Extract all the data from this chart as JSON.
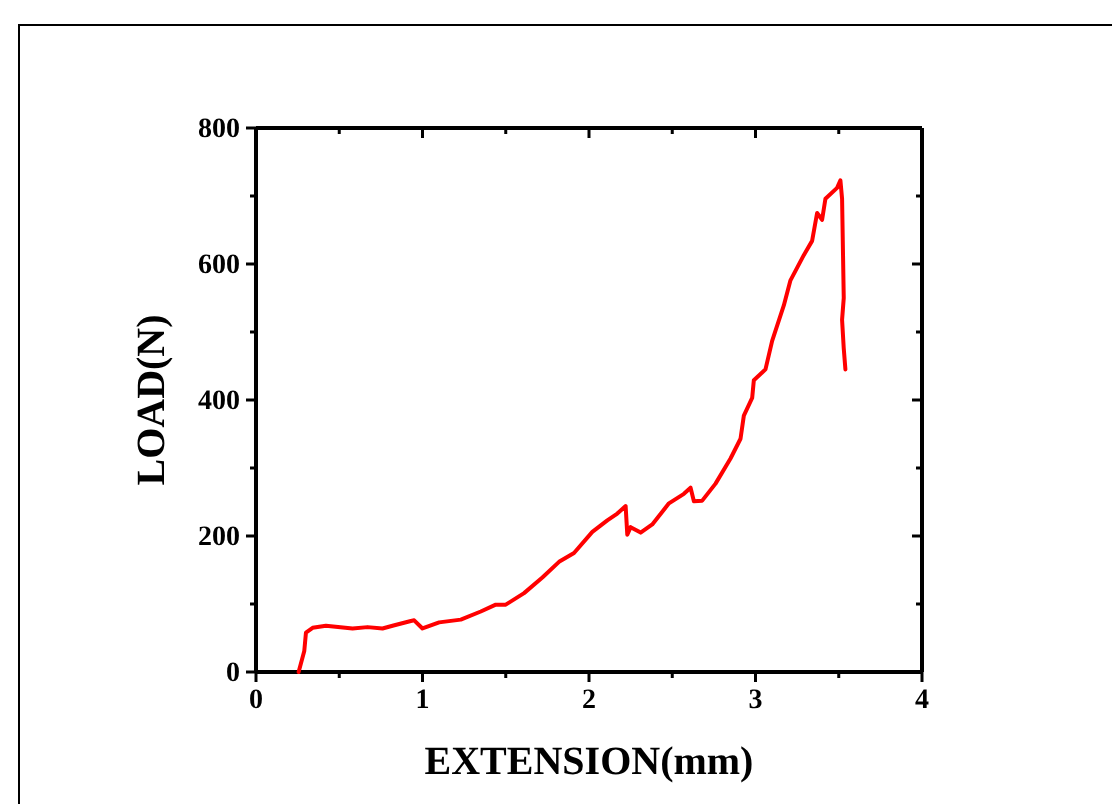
{
  "chart_data": {
    "type": "line",
    "xlabel": "EXTENSION(mm)",
    "ylabel": "LOAD(N)",
    "xlim": [
      0,
      4
    ],
    "xticks": [
      0,
      {
        "value": 0.5,
        "label": null
      },
      1,
      {
        "value": 1.5,
        "label": null
      },
      2,
      {
        "value": 2.5,
        "label": null
      },
      3,
      {
        "value": 3.5,
        "label": null
      },
      4
    ],
    "ylim": [
      0,
      800
    ],
    "yticks": [
      0,
      {
        "value": 100,
        "label": null
      },
      200,
      {
        "value": 300,
        "label": null
      },
      400,
      {
        "value": 500,
        "label": null
      },
      600,
      {
        "value": 700,
        "label": null
      },
      800
    ],
    "grid": false,
    "marker": "none",
    "line_style": "solid",
    "series": [
      {
        "color": "#ff0000",
        "x": [
          0.256,
          0.29,
          0.3,
          0.34,
          0.42,
          0.58,
          0.67,
          0.76,
          0.82,
          0.93,
          0.95,
          1.0,
          1.1,
          1.23,
          1.35,
          1.44,
          1.5,
          1.61,
          1.72,
          1.82,
          1.91,
          2.02,
          2.11,
          2.17,
          2.22,
          2.23,
          2.25,
          2.31,
          2.38,
          2.48,
          2.57,
          2.61,
          2.63,
          2.68,
          2.76,
          2.85,
          2.91,
          2.93,
          2.98,
          2.99,
          3.06,
          3.1,
          3.17,
          3.21,
          3.29,
          3.34,
          3.37,
          3.4,
          3.42,
          3.49,
          3.51,
          3.52,
          3.53,
          3.52,
          3.53,
          3.54
        ],
        "values": [
          0,
          31,
          58,
          65,
          68,
          64,
          66,
          64,
          68,
          75,
          76,
          64,
          73,
          77,
          89,
          99,
          99,
          116,
          139,
          162,
          175,
          206,
          223,
          233,
          244,
          202,
          213,
          205,
          217,
          248,
          262,
          271,
          251,
          252,
          277,
          314,
          343,
          377,
          403,
          429,
          445,
          487,
          539,
          576,
          613,
          634,
          675,
          665,
          696,
          712,
          723,
          696,
          550,
          518,
          476,
          445
        ]
      }
    ]
  }
}
